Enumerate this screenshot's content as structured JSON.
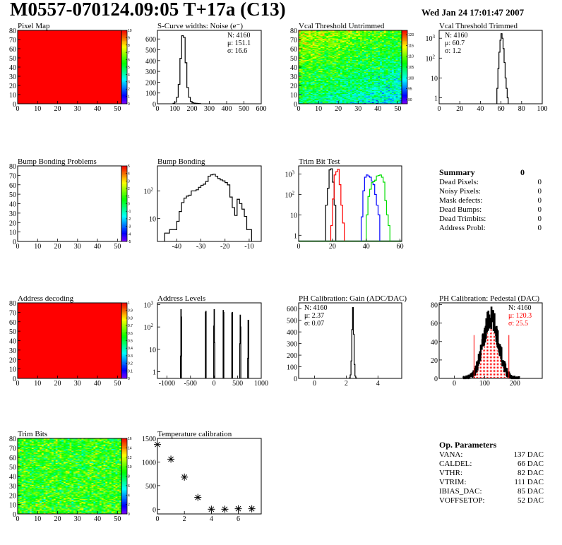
{
  "header": {
    "title": "M0557-070124.09:05 T+17a (C13)",
    "date": "Wed Jan 24 17:01:47 2007"
  },
  "summary": {
    "title": "Summary",
    "total": "0",
    "items": [
      {
        "label": "Dead Pixels:",
        "value": "0"
      },
      {
        "label": "Noisy Pixels:",
        "value": "0"
      },
      {
        "label": "Mask defects:",
        "value": "0"
      },
      {
        "label": "Dead Bumps:",
        "value": "0"
      },
      {
        "label": "Dead Trimbits:",
        "value": "0"
      },
      {
        "label": "Address Probl:",
        "value": "0"
      }
    ]
  },
  "op_parameters": {
    "title": "Op. Parameters",
    "items": [
      {
        "label": "VANA:",
        "value": "137 DAC"
      },
      {
        "label": "CALDEL:",
        "value": "66 DAC"
      },
      {
        "label": "VTHR:",
        "value": "82 DAC"
      },
      {
        "label": "VTRIM:",
        "value": "111 DAC"
      },
      {
        "label": "IBIAS_DAC:",
        "value": "85 DAC"
      },
      {
        "label": "VOFFSETOP:",
        "value": "52 DAC"
      }
    ]
  },
  "chart_data": [
    {
      "id": "pixel-map",
      "type": "heatmap",
      "title": "Pixel Map",
      "xlim": [
        0,
        52
      ],
      "ylim": [
        0,
        80
      ],
      "xticks": [
        0,
        10,
        20,
        30,
        40,
        50
      ],
      "yticks": [
        0,
        10,
        20,
        30,
        40,
        50,
        60,
        70,
        80
      ],
      "zlim": [
        0,
        10
      ],
      "zticks": [
        "0",
        "1",
        "2",
        "3",
        "4",
        "5",
        "6",
        "7",
        "8",
        "9",
        "10"
      ],
      "uniform_value": 10
    },
    {
      "id": "s-curve",
      "type": "histogram",
      "title": "S-Curve widths: Noise (e⁻)",
      "xlim": [
        0,
        600
      ],
      "ylim": [
        0,
        680
      ],
      "xticks": [
        0,
        100,
        200,
        300,
        400,
        500,
        600
      ],
      "yticks": [
        0,
        100,
        200,
        300,
        400,
        500,
        600
      ],
      "bins": {
        "width": 10,
        "x": [
          90,
          100,
          110,
          120,
          130,
          140,
          150,
          160,
          170,
          180,
          190,
          200,
          210,
          220,
          230,
          240
        ],
        "y": [
          4,
          15,
          60,
          180,
          420,
          630,
          615,
          380,
          150,
          60,
          20,
          10,
          6,
          4,
          3,
          2
        ]
      },
      "stats": [
        "N: 4160",
        "μ: 151.1",
        "σ: 16.6"
      ],
      "stats_pos": "top-right"
    },
    {
      "id": "vcal-untrimmed",
      "type": "heatmap",
      "title": "Vcal Threshold Untrimmed",
      "xlim": [
        0,
        52
      ],
      "ylim": [
        0,
        80
      ],
      "xticks": [
        0,
        10,
        20,
        30,
        40,
        50
      ],
      "yticks": [
        0,
        10,
        20,
        30,
        40,
        50,
        60,
        70,
        80
      ],
      "zlim": [
        88,
        122
      ],
      "zticks": [
        "90",
        "95",
        "100",
        "105",
        "110",
        "115",
        "120"
      ],
      "ztick_values": [
        90,
        95,
        100,
        105,
        110,
        115,
        120
      ]
    },
    {
      "id": "vcal-trimmed",
      "type": "histogram",
      "title": "Vcal Threshold Trimmed",
      "xlim": [
        0,
        100
      ],
      "ylim": [
        0.5,
        2500
      ],
      "ylog": true,
      "xticks": [
        0,
        20,
        40,
        60,
        80,
        100
      ],
      "yticks": [
        1,
        10,
        100,
        1000
      ],
      "bins": {
        "width": 1,
        "x": [
          56,
          57,
          58,
          59,
          60,
          61,
          62,
          63,
          64,
          65,
          66
        ],
        "y": [
          3,
          30,
          200,
          800,
          1700,
          1000,
          300,
          60,
          10,
          3,
          1
        ]
      },
      "stats": [
        "N: 4160",
        "μ: 60.7",
        "σ:  1.2"
      ],
      "stats_pos": "top-left"
    },
    {
      "id": "bump-bonding-problems",
      "type": "heatmap",
      "title": "Bump Bonding Problems",
      "xlim": [
        0,
        52
      ],
      "ylim": [
        0,
        80
      ],
      "xticks": [
        0,
        10,
        20,
        30,
        40,
        50
      ],
      "yticks": [
        0,
        10,
        20,
        30,
        40,
        50,
        60,
        70,
        80
      ],
      "zlim": [
        -5,
        5
      ],
      "zticks": [
        "-5",
        "-4",
        "-3",
        "-2",
        "-1",
        "0",
        "1",
        "2",
        "3",
        "4",
        "5"
      ],
      "empty": true
    },
    {
      "id": "bump-bonding",
      "type": "histogram",
      "title": "Bump Bonding",
      "xlim": [
        -48,
        -5
      ],
      "ylim": [
        1.5,
        800
      ],
      "ylog": true,
      "xticks": [
        -40,
        -30,
        -20,
        -10
      ],
      "yticks": [
        10,
        100
      ],
      "bins": {
        "width": 1,
        "x": [
          -45,
          -44,
          -43,
          -42,
          -41,
          -40,
          -39,
          -38,
          -37,
          -36,
          -35,
          -34,
          -33,
          -32,
          -31,
          -30,
          -29,
          -28,
          -27,
          -26,
          -25,
          -24,
          -23,
          -22,
          -21,
          -20,
          -19,
          -18,
          -17,
          -16,
          -15,
          -14,
          -13,
          -12,
          -11,
          -10
        ],
        "y": [
          3,
          3,
          4,
          4,
          4,
          8,
          18,
          38,
          55,
          65,
          70,
          100,
          100,
          110,
          135,
          160,
          175,
          220,
          340,
          380,
          400,
          340,
          280,
          250,
          230,
          200,
          165,
          60,
          25,
          13,
          50,
          35,
          22,
          12,
          4,
          4
        ]
      }
    },
    {
      "id": "trim-bit-test",
      "type": "multi-histogram",
      "title": "Trim Bit Test",
      "xlim": [
        0,
        61
      ],
      "ylim": [
        0.5,
        2500
      ],
      "ylog": true,
      "xticks": [
        0,
        20,
        40,
        60
      ],
      "yticks": [
        1,
        10,
        100,
        1000
      ],
      "series": [
        {
          "color": "#000000",
          "width": 1,
          "x": [
            16,
            17,
            18,
            19,
            20,
            21
          ],
          "y": [
            30,
            200,
            1600,
            1800,
            400,
            30
          ]
        },
        {
          "color": "#ff0000",
          "width": 1,
          "x": [
            19,
            20,
            21,
            22,
            23,
            24,
            25,
            26
          ],
          "y": [
            3,
            60,
            900,
            1300,
            1700,
            300,
            30,
            4
          ]
        },
        {
          "color": "#0000ff",
          "width": 1,
          "x": [
            37,
            38,
            39,
            40,
            41,
            42,
            43,
            44,
            45,
            46,
            47
          ],
          "y": [
            8,
            150,
            700,
            900,
            800,
            700,
            450,
            300,
            100,
            30,
            10
          ]
        },
        {
          "color": "#00dd00",
          "width": 1,
          "x": [
            40,
            41,
            42,
            43,
            44,
            45,
            46,
            47,
            48,
            49,
            50,
            51,
            52,
            53
          ],
          "y": [
            10,
            80,
            180,
            380,
            420,
            500,
            800,
            850,
            900,
            700,
            400,
            50,
            10,
            3
          ]
        }
      ]
    },
    {
      "id": "address-decoding",
      "type": "heatmap",
      "title": "Address decoding",
      "xlim": [
        0,
        52
      ],
      "ylim": [
        0,
        80
      ],
      "xticks": [
        0,
        10,
        20,
        30,
        40,
        50
      ],
      "yticks": [
        0,
        10,
        20,
        30,
        40,
        50,
        60,
        70,
        80
      ],
      "zlim": [
        0,
        1
      ],
      "zticks": [
        "0",
        "0.1",
        "0.2",
        "0.3",
        "0.4",
        "0.5",
        "0.6",
        "0.7",
        "0.8",
        "0.9",
        "1"
      ],
      "uniform_value": 1
    },
    {
      "id": "address-levels",
      "type": "histogram",
      "title": "Address Levels",
      "xlim": [
        -1200,
        1000
      ],
      "ylim": [
        0.5,
        1200
      ],
      "ylog": true,
      "xticks": [
        -1000,
        -500,
        0,
        500,
        1000
      ],
      "yticks": [
        1,
        10,
        100,
        1000
      ],
      "bins": {
        "width": 8,
        "x": [
          -712,
          -704,
          -696,
          -184,
          -176,
          -8,
          0,
          8,
          192,
          200,
          376,
          384,
          544,
          552,
          560,
          712,
          720,
          728
        ],
        "y": [
          5,
          600,
          280,
          450,
          500,
          110,
          600,
          20,
          550,
          450,
          420,
          450,
          18,
          340,
          100,
          4,
          200,
          200
        ]
      }
    },
    {
      "id": "ph-gain",
      "type": "histogram",
      "title": "PH Calibration: Gain (ADC/DAC)",
      "xlim": [
        -1,
        5.5
      ],
      "ylim": [
        0,
        650
      ],
      "xticks": [
        0,
        2,
        4
      ],
      "yticks": [
        0,
        100,
        200,
        300,
        400,
        500,
        600
      ],
      "bins": {
        "width": 0.05,
        "x": [
          2.2,
          2.25,
          2.3,
          2.35,
          2.4,
          2.45,
          2.5,
          2.55,
          2.6
        ],
        "y": [
          5,
          30,
          150,
          420,
          610,
          380,
          120,
          20,
          5
        ]
      },
      "stats": [
        "N: 4160",
        "μ: 2.37",
        "σ: 0.07"
      ],
      "stats_pos": "top-left"
    },
    {
      "id": "ph-pedestal",
      "type": "gauss-histogram",
      "title": "PH Calibration: Pedestal (DAC)",
      "xlim": [
        -50,
        290
      ],
      "ylim": [
        0,
        82
      ],
      "xticks": [
        0,
        100,
        200
      ],
      "yticks": [
        0,
        20,
        40,
        60,
        80
      ],
      "entries": 4160,
      "fit": {
        "mean": 120.3,
        "sigma": 25.5,
        "range": [
          65,
          180
        ],
        "color": "#ff0000"
      },
      "stats": [
        "N: 4160",
        "μ: 120.3",
        "σ: 25.5"
      ],
      "stats_colors": [
        "#000000",
        "#ff0000",
        "#ff0000"
      ],
      "stats_pos": "top-right"
    },
    {
      "id": "trim-bits",
      "type": "heatmap",
      "title": "Trim Bits",
      "xlim": [
        0,
        52
      ],
      "ylim": [
        0,
        80
      ],
      "xticks": [
        0,
        10,
        20,
        30,
        40,
        50
      ],
      "yticks": [
        0,
        10,
        20,
        30,
        40,
        50,
        60,
        70,
        80
      ],
      "zlim": [
        0,
        16
      ],
      "zticks": [
        "0",
        "2",
        "4",
        "6",
        "8",
        "10",
        "12",
        "14",
        "16"
      ],
      "ztick_values": [
        0,
        2,
        4,
        6,
        8,
        10,
        12,
        14,
        16
      ]
    },
    {
      "id": "temperature-calibration",
      "type": "scatter",
      "title": "Temperature calibration",
      "xlim": [
        0,
        7.7
      ],
      "ylim": [
        -100,
        1500
      ],
      "xticks": [
        0,
        2,
        4,
        6
      ],
      "yticks": [
        0,
        500,
        1000,
        1500
      ],
      "marker": "star",
      "x": [
        0,
        1,
        2,
        3,
        4,
        5,
        6,
        7
      ],
      "y": [
        1370,
        1060,
        680,
        250,
        0,
        0,
        10,
        10
      ]
    }
  ]
}
